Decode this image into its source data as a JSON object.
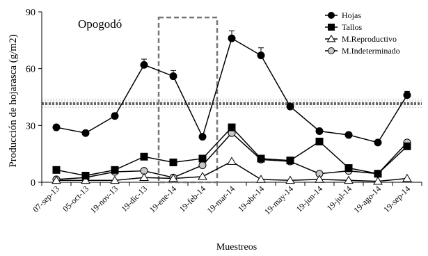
{
  "chart_data": {
    "type": "line",
    "title": "Opogodó",
    "xlabel": "Muestreos",
    "ylabel": "Producción de hojarasca (g/m2)",
    "ylim": [
      0,
      90
    ],
    "yticks": [
      0,
      30,
      60,
      90
    ],
    "categories": [
      "07-sep-13",
      "05-oct-13",
      "19-nov-13",
      "19-dic-13",
      "19-ene-14",
      "19-feb-14",
      "19-mar-14",
      "19-abr-14",
      "19-may-14",
      "19-jun-14",
      "19-jul-14",
      "19-ago-14",
      "19-sep-14"
    ],
    "legend_position": "top-right",
    "series": [
      {
        "name": "Hojas",
        "marker": "circle",
        "fill": "#000000",
        "values": [
          29,
          26,
          35,
          62,
          56,
          24,
          76,
          67,
          40,
          27,
          25,
          21,
          46
        ],
        "errors": [
          0,
          0,
          1.5,
          3,
          3,
          0,
          4,
          4,
          1.5,
          0,
          0,
          0,
          2
        ]
      },
      {
        "name": "Tallos",
        "marker": "square",
        "fill": "#000000",
        "values": [
          6.5,
          3.5,
          6.5,
          13.5,
          10.5,
          12.5,
          29,
          12.5,
          11.5,
          21.5,
          7.5,
          4.5,
          19
        ],
        "errors": [
          0,
          0,
          0,
          0,
          0,
          0,
          0,
          0,
          0,
          0,
          0,
          0,
          0
        ]
      },
      {
        "name": "M.Reproductivo",
        "marker": "triangle",
        "fill": "#ffffff",
        "values": [
          1,
          1,
          1,
          2.5,
          2,
          3,
          11,
          1.5,
          1,
          1.5,
          1,
          0.5,
          2
        ],
        "errors": [
          0,
          0,
          0,
          0,
          0,
          0,
          0,
          0,
          0,
          0,
          0,
          0,
          0
        ]
      },
      {
        "name": "M.Indeterminado",
        "marker": "circle",
        "fill": "#c8c8c8",
        "values": [
          1.5,
          2.5,
          5.5,
          6,
          2.5,
          9,
          26,
          12,
          11,
          4.5,
          6,
          4.5,
          21
        ],
        "errors": [
          0,
          0,
          0,
          0,
          0,
          0,
          0,
          0,
          0,
          0,
          0,
          0,
          0
        ]
      }
    ],
    "reference_line": {
      "value": 41.5,
      "band": [
        39.5,
        44
      ],
      "color": "#666666",
      "style": "dotted"
    },
    "highlight_box": {
      "from_category": "19-ene-14",
      "to_category": "19-feb-14",
      "color": "#777777",
      "style": "dashed"
    }
  }
}
